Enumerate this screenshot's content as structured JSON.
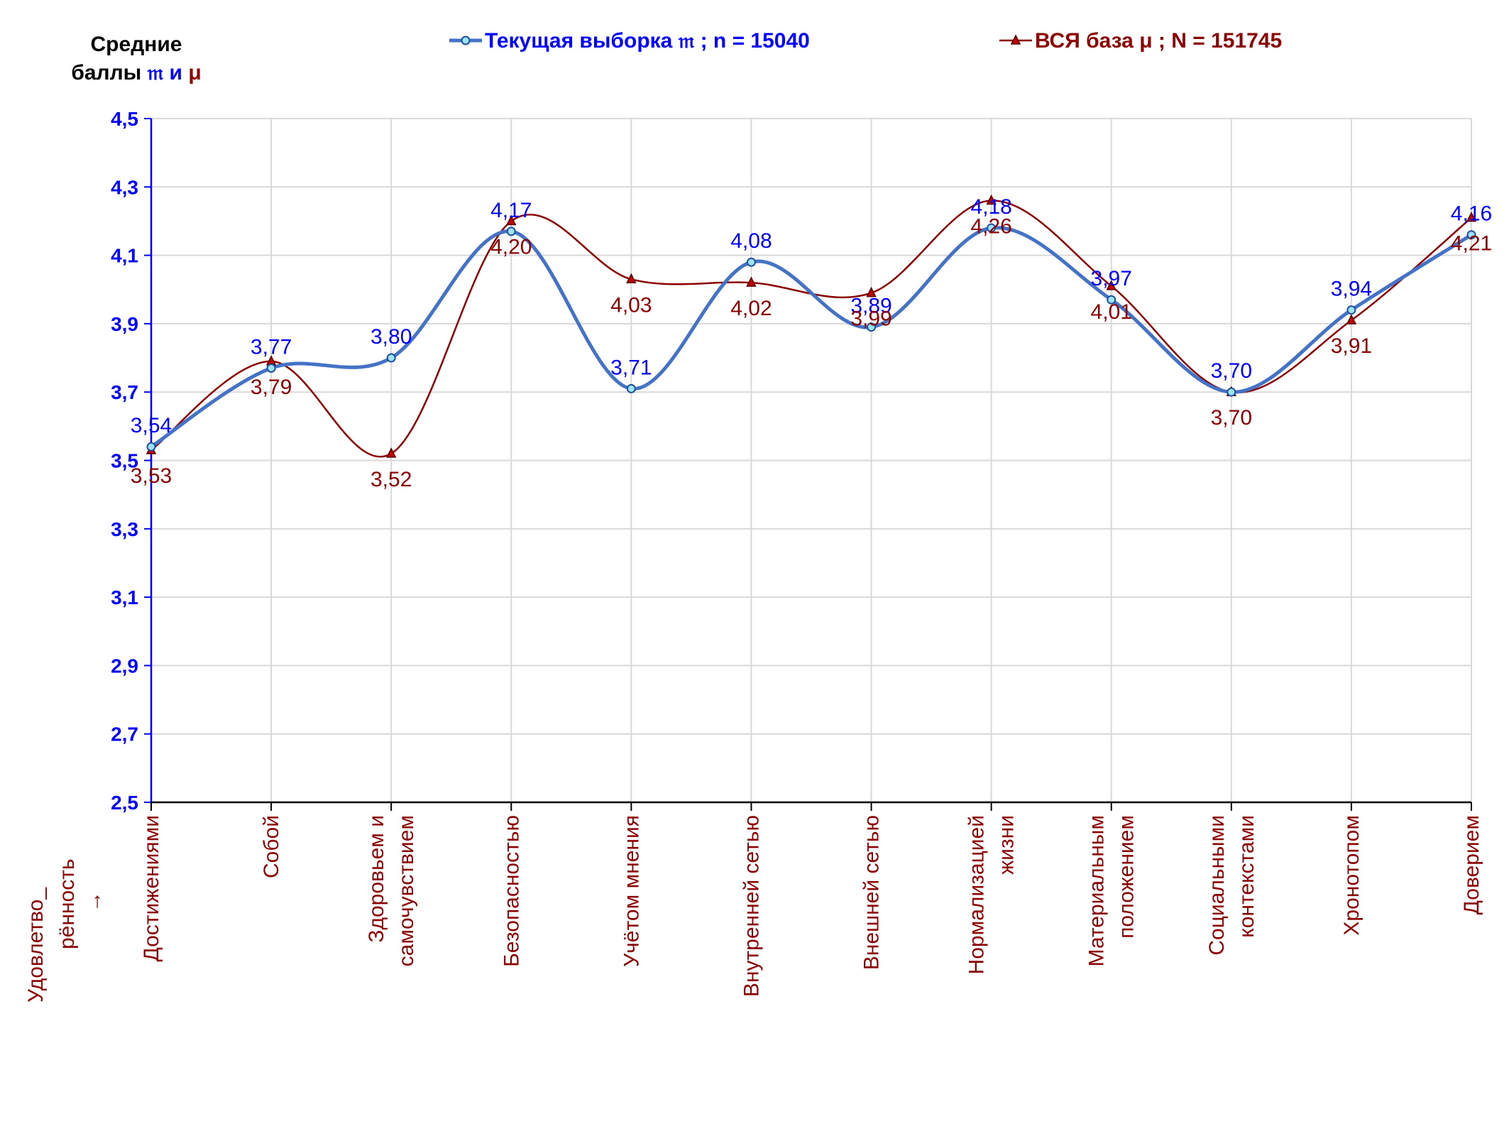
{
  "chart_data": {
    "type": "line",
    "ylabel_line1": "Средние",
    "ylabel_line2_prefix": "баллы ",
    "ylabel_sym_sample": "𝔪",
    "ylabel_sym_and": " и ",
    "ylabel_sym_pop": "μ",
    "corner_label_line1": "Удовлетво_",
    "corner_label_line2": "рённость",
    "corner_label_arrow": "→",
    "categories": [
      [
        "Достижениями"
      ],
      [
        "Собой"
      ],
      [
        "Здоровьем и",
        "самочувствием"
      ],
      [
        "Безопасностью"
      ],
      [
        "Учётом мнения"
      ],
      [
        "Внутренней сетью"
      ],
      [
        "Внешней сетью"
      ],
      [
        "Нормализацией",
        "жизни"
      ],
      [
        "Материальным",
        "положением"
      ],
      [
        "Социальными",
        "контекстами"
      ],
      [
        "Хронотопом"
      ],
      [
        "Доверием"
      ]
    ],
    "ylim": [
      2.5,
      4.5
    ],
    "yticks": [
      2.5,
      2.7,
      2.9,
      3.1,
      3.3,
      3.5,
      3.7,
      3.9,
      4.1,
      4.3,
      4.5
    ],
    "yticks_text": [
      "2,5",
      "2,7",
      "2,9",
      "3,1",
      "3,3",
      "3,5",
      "3,7",
      "3,9",
      "4,1",
      "4,3",
      "4,5"
    ],
    "grid": true,
    "legend_position": "top",
    "series": [
      {
        "name": "Текущая выборка 𝔪 ; n = 15040",
        "color": "#4472C4",
        "label_color": "#0000FF",
        "marker": "circle",
        "values": [
          3.54,
          3.77,
          3.8,
          4.17,
          3.71,
          4.08,
          3.89,
          4.18,
          3.97,
          3.7,
          3.94,
          4.16
        ],
        "labels": [
          "3,54",
          "3,77",
          "3,80",
          "4,17",
          "3,71",
          "4,08",
          "3,89",
          "4,18",
          "3,97",
          "3,70",
          "3,94",
          "4,16"
        ]
      },
      {
        "name": "ВСЯ база μ ; N = 151745",
        "color": "#8B0000",
        "label_color": "#8B0000",
        "marker": "triangle",
        "values": [
          3.53,
          3.79,
          3.52,
          4.2,
          4.03,
          4.02,
          3.99,
          4.26,
          4.01,
          3.7,
          3.91,
          4.21
        ],
        "labels": [
          "3,53",
          "3,79",
          "3,52",
          "4,20",
          "4,03",
          "4,02",
          "3,99",
          "4,26",
          "4,01",
          "3,70",
          "3,91",
          "4,21"
        ]
      }
    ]
  }
}
